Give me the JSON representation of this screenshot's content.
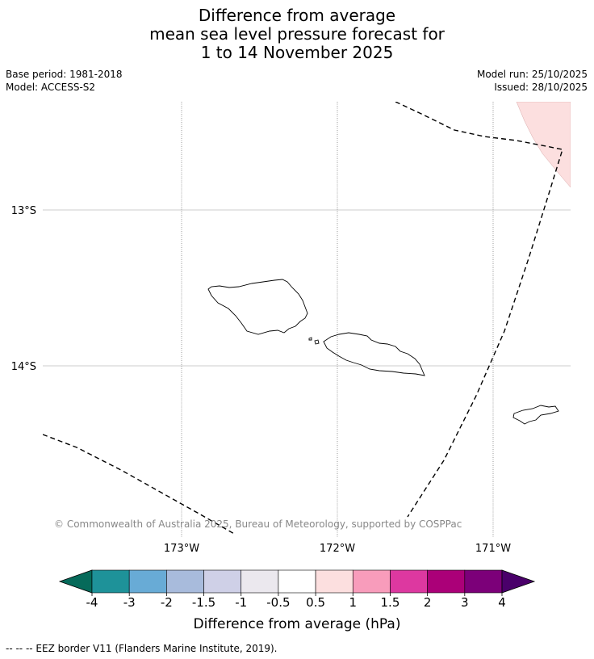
{
  "title": {
    "line1": "Difference from average",
    "line2": "mean sea level pressure forecast for",
    "line3": "1 to 14 November 2025"
  },
  "meta": {
    "base_period": "Base period: 1981-2018",
    "model": "Model: ACCESS-S2",
    "model_run": "Model run: 25/10/2025",
    "issued": "Issued: 28/10/2025"
  },
  "map": {
    "lat_labels": [
      "13°S",
      "14°S"
    ],
    "lon_labels": [
      "173°W",
      "172°W",
      "171°W"
    ],
    "copyright": "© Commonwealth of Australia 2025, Bureau of Meteorology, supported by COSPPac",
    "anomaly_fill_color": "#fcdfdf",
    "anomaly_category": "0.5 to 1"
  },
  "colorbar": {
    "label": "Difference from average (hPa)",
    "ticks": [
      "-4",
      "-3",
      "-2",
      "-1.5",
      "-1",
      "-0.5",
      "0.5",
      "1",
      "1.5",
      "2",
      "3",
      "4"
    ],
    "colors": [
      "#066a5a",
      "#1e9299",
      "#68abd6",
      "#a8bbdc",
      "#cfd0e7",
      "#ebe8ee",
      "#ffffff",
      "#fcdfdf",
      "#f89cbb",
      "#dd38a0",
      "#ab0078",
      "#7c0079",
      "#4a006a"
    ]
  },
  "footnote": "--  --  -- EEZ border V11 (Flanders Marine Institute, 2019)."
}
